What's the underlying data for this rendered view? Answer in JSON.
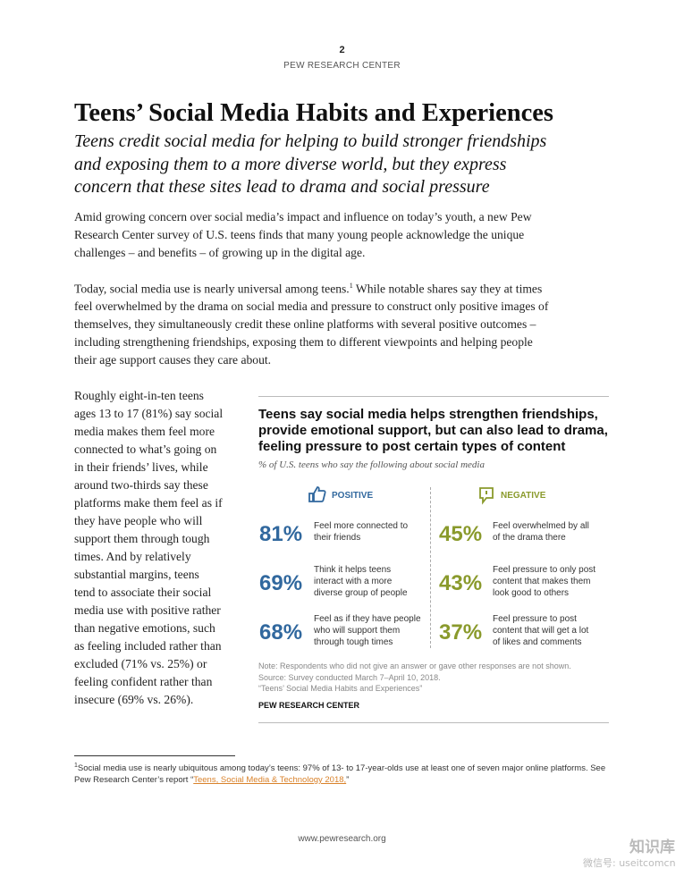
{
  "header": {
    "page_number": "2",
    "org": "PEW RESEARCH CENTER"
  },
  "title": "Teens’ Social Media Habits and Experiences",
  "subtitle_lines": [
    "Teens credit social media for helping to build stronger friendships",
    "and exposing them to a more diverse world, but they express",
    "concern that these sites lead to drama and social pressure"
  ],
  "intro_lines": [
    "Amid growing concern over social media’s impact and influence on today’s youth, a new Pew",
    "Research Center survey of U.S. teens finds that many young people acknowledge the unique",
    "challenges – and benefits – of growing up in the digital age."
  ],
  "para2": {
    "line1_before": "Today, social media use is nearly universal among teens.",
    "footnote_ref": "1",
    "line1_after": " While notable shares say they at times",
    "lines": [
      "feel overwhelmed by the drama on social media and pressure to construct only positive images of",
      "themselves, they simultaneously credit these online platforms with several positive outcomes –",
      "including strengthening friendships, exposing them to different viewpoints and helping people",
      "their age support causes they care about."
    ]
  },
  "sidebar_lines": [
    "Roughly eight-in-ten teens",
    "ages 13 to 17 (81%) say social",
    "media makes them feel more",
    "connected to what’s going on",
    "in their friends’ lives, while",
    "around two-thirds say these",
    "platforms make them feel as if",
    "they have people who will",
    "support them through tough",
    "times. And by relatively",
    "substantial margins, teens",
    "tend to associate their social",
    "media use with positive rather",
    "than negative emotions, such",
    "as feeling included rather than",
    "excluded (71% vs. 25%) or",
    "feeling confident rather than",
    "insecure (69% vs. 26%)."
  ],
  "infographic": {
    "title_lines": [
      "Teens say social media helps strengthen friendships,",
      "provide emotional support, but can also lead to drama,",
      "feeling pressure to post certain types of content"
    ],
    "subtitle": "% of U.S. teens who say the following about social media",
    "positive_label": "POSITIVE",
    "negative_label": "NEGATIVE",
    "positive": [
      {
        "value": "81%",
        "lines": [
          "Feel more connected to",
          "their friends"
        ]
      },
      {
        "value": "69%",
        "lines": [
          "Think it helps teens",
          "interact with a more",
          "diverse group of people"
        ]
      },
      {
        "value": "68%",
        "lines": [
          "Feel as if they have people",
          "who will support them",
          "through tough times"
        ]
      }
    ],
    "negative": [
      {
        "value": "45%",
        "lines": [
          "Feel overwhelmed by all",
          "of the drama there"
        ]
      },
      {
        "value": "43%",
        "lines": [
          "Feel pressure to only post",
          "content that makes them",
          "look good to others"
        ]
      },
      {
        "value": "37%",
        "lines": [
          "Feel pressure to post",
          "content that will get a lot",
          "of likes and comments"
        ]
      }
    ],
    "note_lines": [
      "Note: Respondents who did not give an answer or gave other responses are not shown.",
      "Source: Survey conducted March 7–April 10, 2018.",
      "“Teens’ Social Media Habits and Experiences”"
    ],
    "source": "PEW RESEARCH CENTER"
  },
  "footnote": {
    "marker": "1",
    "line1": "Social media use is nearly ubiquitous among today’s teens: 97% of 13- to 17-year-olds use at least one of seven major online platforms. See",
    "line2_before": "Pew Research Center’s report “",
    "link": "Teens, Social Media & Technology 2018,",
    "line2_after": "”"
  },
  "footer": "www.pewresearch.org",
  "watermark": {
    "logo_text": "知识库",
    "account": "微信号: useitcomcn"
  }
}
